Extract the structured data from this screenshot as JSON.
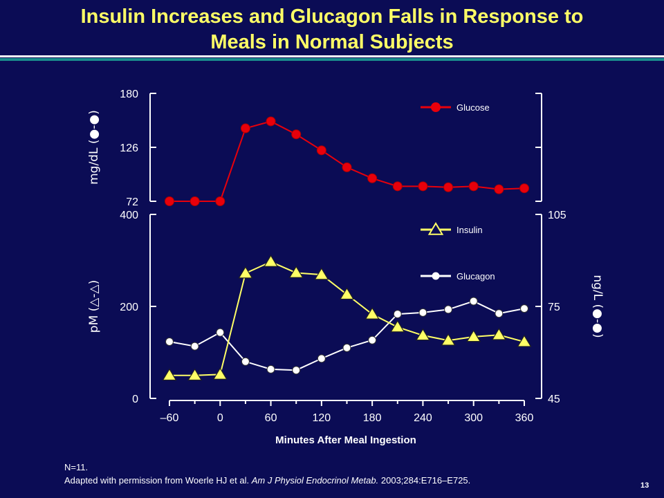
{
  "slide": {
    "title_line1": "Insulin Increases and Glucagon Falls in Response to",
    "title_line2": "Meals in Normal Subjects",
    "footnote_n": "N=11.",
    "footnote_source_prefix": "Adapted with permission from Woerle HJ et al.",
    "footnote_journal": "Am J Physiol Endocrinol Metab.",
    "footnote_citation": "2003;284:E716–E725.",
    "page_number": "13"
  },
  "colors": {
    "background": "#0b0c55",
    "title": "#ffff66",
    "glucose": "#e8000b",
    "insulin": "#ffff66",
    "glucagon": "#ffffff"
  },
  "chart_data": [
    {
      "type": "line",
      "panel": "top",
      "ylabel_left": "mg/dL (●-●)",
      "yticks_left": [
        "180",
        "126",
        "72"
      ],
      "ylim": [
        72,
        180
      ],
      "legend": [
        {
          "name": "Glucose",
          "marker": "circle",
          "placement": "top-right"
        }
      ],
      "series": [
        {
          "name": "Glucose",
          "x": [
            -60,
            -30,
            0,
            30,
            60,
            90,
            120,
            150,
            180,
            210,
            240,
            270,
            300,
            330,
            360
          ],
          "values": [
            72,
            72,
            72,
            145,
            152,
            139,
            123,
            106,
            95,
            87,
            87,
            86,
            87,
            84,
            85
          ]
        }
      ]
    },
    {
      "type": "line",
      "panel": "bottom",
      "xlabel": "Minutes After Meal Ingestion",
      "xticks": [
        "–60",
        "0",
        "60",
        "120",
        "180",
        "240",
        "300",
        "360"
      ],
      "xlim": [
        -60,
        360
      ],
      "ylabel_left": "pM (△-△)",
      "yticks_left": [
        "400",
        "200",
        "0"
      ],
      "ylim_left": [
        0,
        400
      ],
      "ylabel_right": "ng/L (●-●)",
      "yticks_right": [
        "105",
        "75",
        "45"
      ],
      "ylim_right": [
        45,
        105
      ],
      "legend": [
        {
          "name": "Insulin",
          "marker": "triangle",
          "placement": "top-right"
        },
        {
          "name": "Glucagon",
          "marker": "circle",
          "placement": "top-right"
        }
      ],
      "series": [
        {
          "name": "Insulin",
          "axis": "left",
          "x": [
            -60,
            -30,
            0,
            30,
            60,
            90,
            120,
            150,
            180,
            210,
            240,
            270,
            300,
            330,
            360
          ],
          "values": [
            50,
            50,
            52,
            272,
            297,
            273,
            269,
            226,
            183,
            155,
            137,
            126,
            134,
            138,
            123
          ]
        },
        {
          "name": "Glucagon",
          "axis": "right",
          "x": [
            -60,
            -30,
            0,
            30,
            60,
            90,
            120,
            150,
            180,
            210,
            240,
            270,
            300,
            330,
            360
          ],
          "values": [
            63.5,
            62,
            66.5,
            57,
            54.5,
            54.2,
            58,
            61.5,
            64,
            72.5,
            73,
            74,
            76.7,
            72.7,
            74.3
          ]
        }
      ]
    }
  ]
}
